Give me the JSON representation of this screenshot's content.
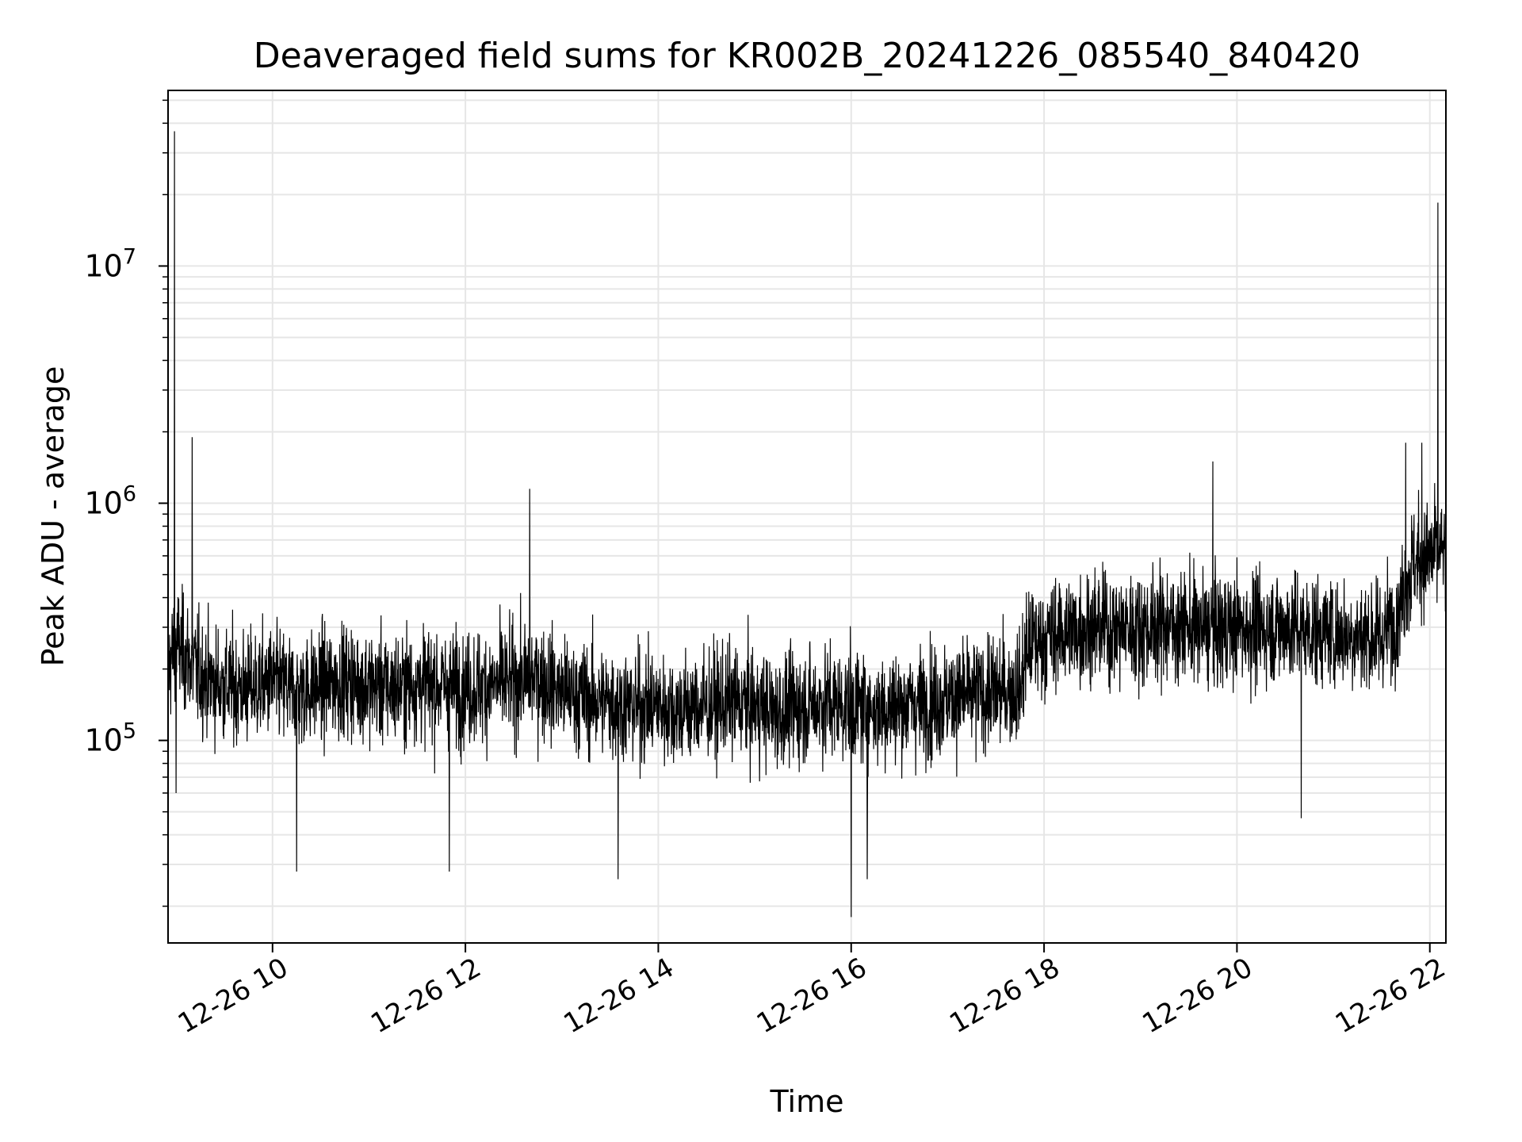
{
  "chart_data": {
    "type": "line",
    "title": "Deaveraged field sums for KR002B_20241226_085540_840420",
    "xlabel": "Time",
    "ylabel": "Peak ADU - average",
    "xlim": [
      "2024-12-26 08:55",
      "2024-12-26 22:10"
    ],
    "ylim": [
      14000,
      55000000
    ],
    "yscale": "log",
    "grid": true,
    "line_color": "#000000",
    "grid_color": "#e6e6e6",
    "x_ticks": [
      "12-26 10",
      "12-26 12",
      "12-26 14",
      "12-26 16",
      "12-26 18",
      "12-26 20",
      "12-26 22"
    ],
    "y_ticks": [
      {
        "value": 100000,
        "base": "10",
        "exp": "5"
      },
      {
        "value": 1000000,
        "base": "10",
        "exp": "6"
      },
      {
        "value": 10000000,
        "base": "10",
        "exp": "7"
      }
    ],
    "series": [
      {
        "name": "",
        "x": [
          "08:55",
          "09:00",
          "09:05",
          "09:10",
          "09:15",
          "09:20",
          "09:30",
          "09:45",
          "10:00",
          "10:15",
          "10:30",
          "10:45",
          "11:00",
          "11:15",
          "11:30",
          "11:45",
          "12:00",
          "12:15",
          "12:30",
          "12:45",
          "13:00",
          "13:15",
          "13:30",
          "13:45",
          "14:00",
          "14:15",
          "14:30",
          "14:45",
          "15:00",
          "15:15",
          "15:30",
          "15:45",
          "16:00",
          "16:15",
          "16:30",
          "16:45",
          "17:00",
          "17:15",
          "17:30",
          "17:45",
          "17:50",
          "18:00",
          "18:15",
          "18:30",
          "18:45",
          "19:00",
          "19:15",
          "19:30",
          "19:45",
          "20:00",
          "20:15",
          "20:30",
          "20:45",
          "21:00",
          "21:15",
          "21:30",
          "21:40",
          "21:45",
          "21:50",
          "22:00",
          "22:05",
          "22:10"
        ],
        "y": [
          200000,
          260000,
          230000,
          210000,
          190000,
          180000,
          170000,
          165000,
          175000,
          160000,
          170000,
          180000,
          170000,
          165000,
          175000,
          170000,
          165000,
          170000,
          175000,
          185000,
          160000,
          150000,
          145000,
          140000,
          140000,
          135000,
          140000,
          145000,
          140000,
          130000,
          140000,
          145000,
          140000,
          135000,
          140000,
          145000,
          150000,
          155000,
          160000,
          165000,
          250000,
          270000,
          290000,
          300000,
          295000,
          300000,
          310000,
          300000,
          290000,
          300000,
          295000,
          305000,
          290000,
          285000,
          280000,
          270000,
          350000,
          450000,
          560000,
          600000,
          620000,
          610000
        ],
        "spikes_high": [
          {
            "x": "08:59",
            "y": 37000000
          },
          {
            "x": "09:10",
            "y": 1900000
          },
          {
            "x": "12:40",
            "y": 1150000
          },
          {
            "x": "19:45",
            "y": 1500000
          },
          {
            "x": "21:45",
            "y": 1800000
          },
          {
            "x": "21:55",
            "y": 1800000
          },
          {
            "x": "22:05",
            "y": 18500000
          }
        ],
        "spikes_low": [
          {
            "x": "09:00",
            "y": 60000
          },
          {
            "x": "10:15",
            "y": 28000
          },
          {
            "x": "11:50",
            "y": 28000
          },
          {
            "x": "13:35",
            "y": 26000
          },
          {
            "x": "16:00",
            "y": 18000
          },
          {
            "x": "16:10",
            "y": 26000
          },
          {
            "x": "20:40",
            "y": 47000
          }
        ]
      }
    ]
  }
}
